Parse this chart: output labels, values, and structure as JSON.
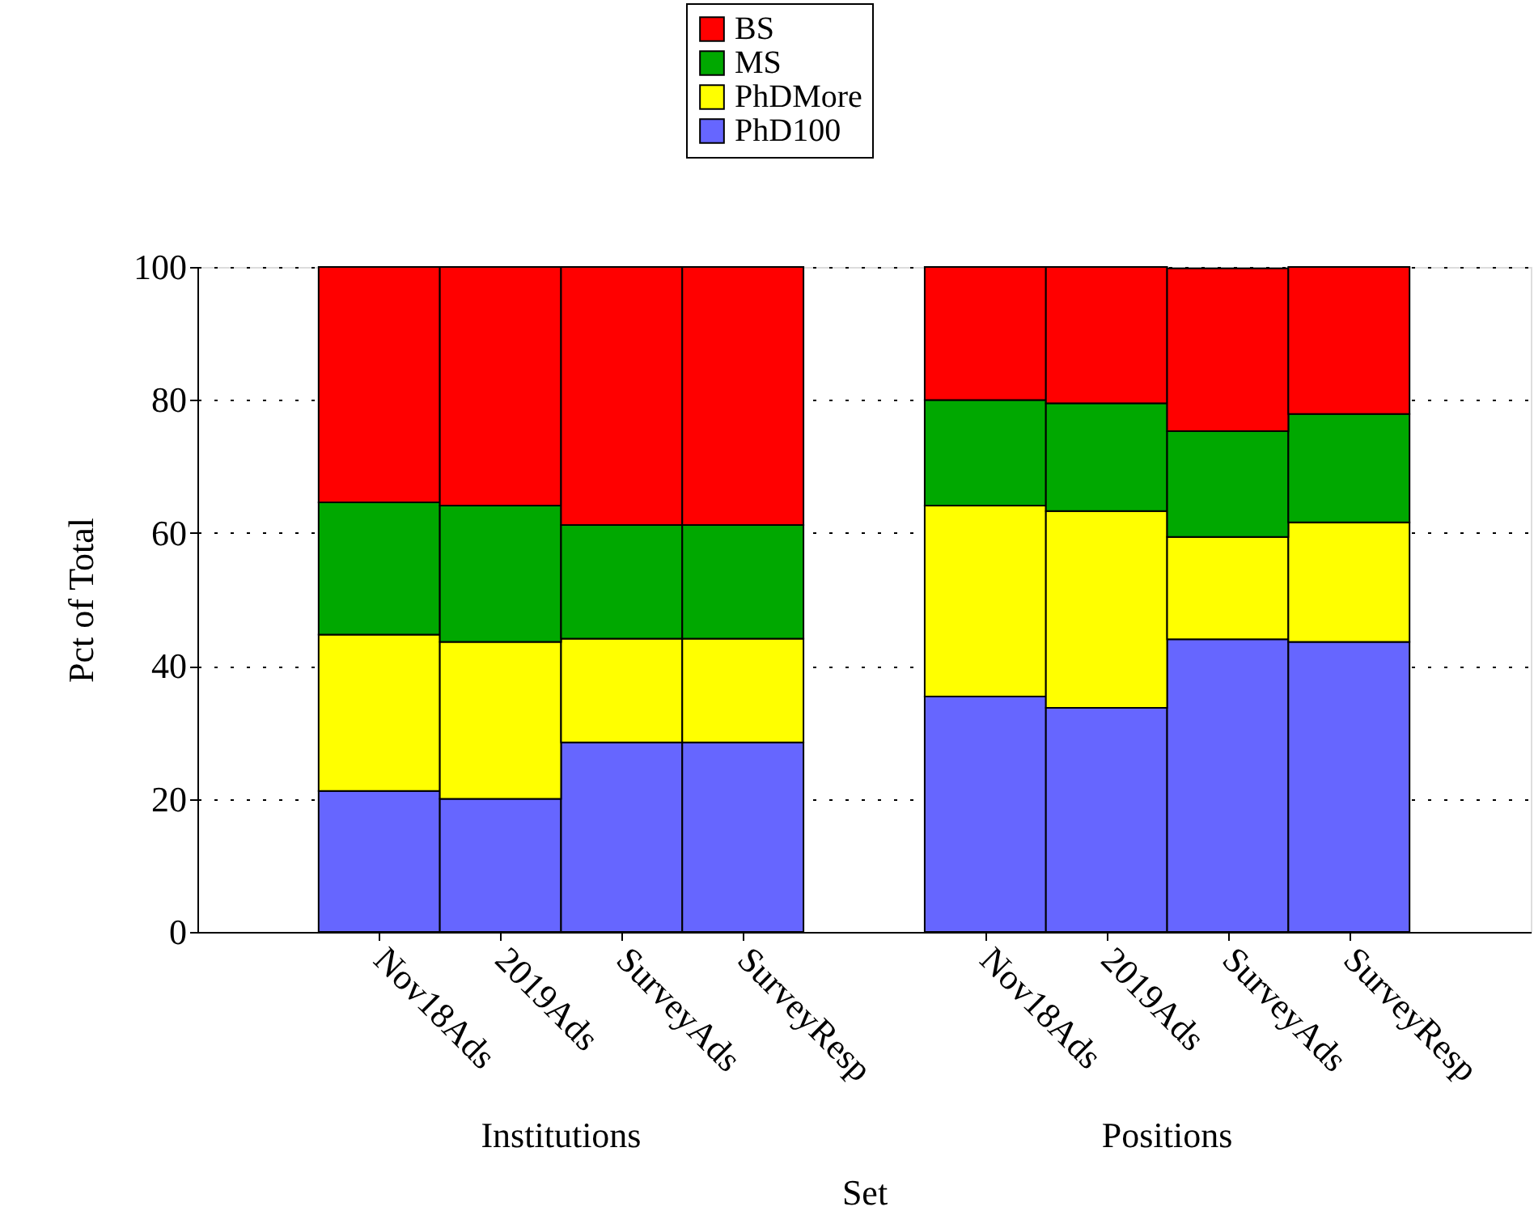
{
  "chart_data": {
    "type": "bar",
    "stacked": true,
    "xlabel": "Set",
    "ylabel": "Pct of Total",
    "categories": [
      null,
      "Nov18Ads",
      "2019Ads",
      "SurveyAds",
      "SurveyResp",
      null,
      "Nov18Ads",
      "2019Ads",
      "SurveyAds",
      "SurveyResp",
      null
    ],
    "series": [
      {
        "name": "PhD100",
        "color": "#6666ff",
        "values": [
          null,
          21.2,
          20.0,
          28.5,
          28.5,
          null,
          35.4,
          33.7,
          44.0,
          43.6,
          null
        ]
      },
      {
        "name": "PhDMore",
        "color": "#ffff00",
        "values": [
          null,
          23.5,
          23.6,
          15.6,
          15.6,
          null,
          28.7,
          29.6,
          15.4,
          18.0,
          null
        ]
      },
      {
        "name": "MS",
        "color": "#00a800",
        "values": [
          null,
          19.9,
          20.5,
          17.1,
          17.1,
          null,
          15.9,
          16.2,
          15.9,
          16.3,
          null
        ]
      },
      {
        "name": "BS",
        "color": "#ff0000",
        "values": [
          null,
          35.4,
          35.9,
          38.8,
          38.8,
          null,
          20.0,
          20.5,
          24.5,
          22.1,
          null
        ]
      }
    ],
    "ylim": [
      0,
      100
    ],
    "yticks": [
      0,
      20,
      40,
      60,
      80,
      100
    ],
    "grid": "y",
    "legend": "top",
    "annotations": [
      "Institutions",
      "Positions"
    ]
  }
}
